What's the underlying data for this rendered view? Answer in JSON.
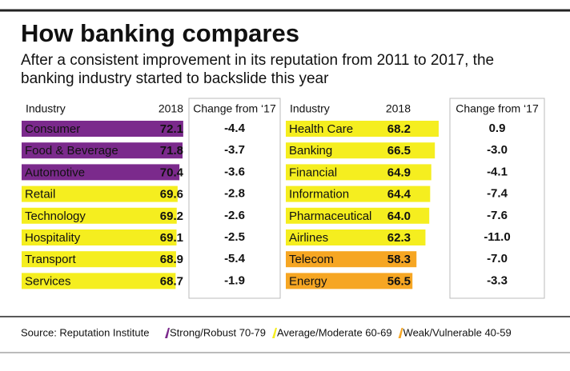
{
  "title": "How banking compares",
  "subtitle": [
    "After a consistent improvement in its reputation from 2011 to 2017, the",
    "banking industry started to backslide this year"
  ],
  "columns": [
    "Industry",
    "2018",
    "Change from ‘17"
  ],
  "panels": [
    {
      "rows": [
        {
          "industry": "Consumer",
          "score": 72.1,
          "change": -4.4,
          "color": "#7b2a8c"
        },
        {
          "industry": "Food & Beverage",
          "score": 71.8,
          "change": -3.7,
          "color": "#7b2a8c"
        },
        {
          "industry": "Automotive",
          "score": 70.4,
          "change": -3.6,
          "color": "#7b2a8c"
        },
        {
          "industry": "Retail",
          "score": 69.6,
          "change": -2.8,
          "color": "#f5ee1f"
        },
        {
          "industry": "Technology",
          "score": 69.2,
          "change": -2.6,
          "color": "#f5ee1f"
        },
        {
          "industry": "Hospitality",
          "score": 69.1,
          "change": -2.5,
          "color": "#f5ee1f"
        },
        {
          "industry": "Transport",
          "score": 68.9,
          "change": -5.4,
          "color": "#f5ee1f"
        },
        {
          "industry": "Services",
          "score": 68.7,
          "change": -1.9,
          "color": "#f5ee1f"
        }
      ]
    },
    {
      "rows": [
        {
          "industry": "Health Care",
          "score": 68.2,
          "change": 0.9,
          "color": "#f5ee1f"
        },
        {
          "industry": "Banking",
          "score": 66.5,
          "change": {
            "value": -3,
            "label": "-3.0"
          },
          "color": "#f5ee1f"
        },
        {
          "industry": "Financial",
          "score": 64.9,
          "change": -4.1,
          "color": "#f5ee1f"
        },
        {
          "industry": "Information",
          "score": 64.4,
          "change": -7.4,
          "color": "#f5ee1f"
        },
        {
          "industry": "Pharmaceutical",
          "score": {
            "value": 64,
            "label": "64.0"
          },
          "change": -7.6,
          "color": "#f5ee1f"
        },
        {
          "industry": "Airlines",
          "score": 62.3,
          "change": {
            "value": -11,
            "label": "-11.0"
          },
          "color": "#f5ee1f"
        },
        {
          "industry": "Telecom",
          "score": 58.3,
          "change": {
            "value": -7,
            "label": "-7.0"
          },
          "color": "#f6a623"
        },
        {
          "industry": "Energy",
          "score": 56.5,
          "change": -3.3,
          "color": "#f6a623"
        }
      ]
    }
  ],
  "source": "Source: Reputation Institute",
  "legend": [
    {
      "label": "Strong/Robust 70-79",
      "color": "#7b2a8c"
    },
    {
      "label": "Average/Moderate 60-69",
      "color": "#f5ee1f"
    },
    {
      "label": "Weak/Vulnerable 40-59",
      "color": "#f6a623"
    }
  ]
}
